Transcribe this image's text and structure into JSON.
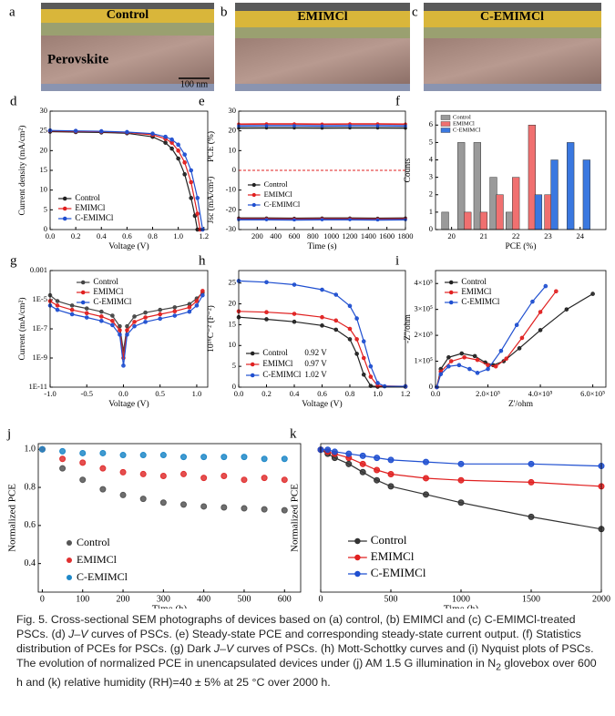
{
  "sem": [
    {
      "label": "a",
      "title": "Control",
      "layer_label": "Perovskite",
      "scale_bar": "100 nm"
    },
    {
      "label": "b",
      "title": "EMIMCl"
    },
    {
      "label": "c",
      "title": "C-EMIMCl"
    }
  ],
  "chart_data": [
    {
      "type": "line",
      "label": "d",
      "xlabel": "Voltage (V)",
      "ylabel": "Current density (mA/cm²)",
      "xlim": [
        0,
        1.23
      ],
      "xticks": [
        {
          "value": 0,
          "label": "0.0"
        },
        0.2,
        0.4,
        0.6,
        0.8,
        {
          "value": 1,
          "label": "1.0"
        },
        1.2
      ],
      "ylim": [
        0,
        30
      ],
      "yticks": [
        0,
        5,
        10,
        15,
        20,
        25,
        30
      ],
      "series": [
        {
          "name": "Control",
          "color": "#222222",
          "x": [
            0,
            0.2,
            0.4,
            0.6,
            0.8,
            0.9,
            0.95,
            1.0,
            1.05,
            1.1,
            1.13,
            1.15
          ],
          "values": [
            24.8,
            24.7,
            24.6,
            24.4,
            23.5,
            22,
            20.5,
            18,
            14,
            8,
            3.5,
            0
          ]
        },
        {
          "name": "EMIMCl",
          "color": "#e02020",
          "x": [
            0,
            0.2,
            0.4,
            0.6,
            0.8,
            0.9,
            0.95,
            1.0,
            1.05,
            1.1,
            1.15,
            1.17
          ],
          "values": [
            25,
            24.9,
            24.8,
            24.6,
            24,
            23,
            22,
            20,
            17,
            12,
            4,
            0
          ]
        },
        {
          "name": "C-EMIMCl",
          "color": "#1f4fd0",
          "x": [
            0,
            0.2,
            0.4,
            0.6,
            0.8,
            0.9,
            0.95,
            1.0,
            1.05,
            1.1,
            1.15,
            1.19
          ],
          "values": [
            25.1,
            25,
            24.9,
            24.7,
            24.3,
            23.5,
            22.8,
            21.5,
            19,
            15,
            8,
            0
          ]
        }
      ]
    },
    {
      "type": "steady",
      "label": "e",
      "xlabel": "Time (s)",
      "ylabel_top": "PCE (%)",
      "ylabel_bottom": "Jsc (mA/cm²)",
      "xlim": [
        0,
        1800
      ],
      "xticks": [
        200,
        400,
        600,
        800,
        1000,
        1200,
        1400,
        1600,
        1800
      ],
      "ylim": [
        -30,
        30
      ],
      "yticks": [
        30,
        20,
        10,
        0,
        -10,
        -20,
        -30
      ],
      "reference_line": 0,
      "x": [
        0,
        300,
        600,
        900,
        1200,
        1500,
        1800
      ],
      "series": [
        {
          "name": "Control",
          "color": "#222222",
          "pce": [
            21.4,
            21.5,
            21.5,
            21.4,
            21.5,
            21.5,
            21.4
          ],
          "jsc": [
            -24.2,
            -24.2,
            -24.3,
            -24.2,
            -24.2,
            -24.3,
            -24.2
          ]
        },
        {
          "name": "EMIMCl",
          "color": "#e02020",
          "pce": [
            23.4,
            23.5,
            23.5,
            23.4,
            23.5,
            23.5,
            23.4
          ],
          "jsc": [
            -24.6,
            -24.6,
            -24.7,
            -24.6,
            -24.6,
            -24.7,
            -24.6
          ]
        },
        {
          "name": "C-EMIMCl",
          "color": "#1f4fd0",
          "pce": [
            22.5,
            22.6,
            22.6,
            22.5,
            22.6,
            22.6,
            22.5
          ],
          "jsc": [
            -25,
            -25,
            -25.1,
            -25,
            -25,
            -25.1,
            -25
          ]
        }
      ]
    },
    {
      "type": "bar",
      "label": "f",
      "xlabel": "PCE (%)",
      "ylabel": "Counts",
      "xlim": [
        19.5,
        24.8
      ],
      "xticks": [
        20,
        21,
        22,
        23,
        24
      ],
      "ylim": [
        0,
        6.8
      ],
      "yticks": [
        0,
        1,
        2,
        3,
        4,
        5,
        6
      ],
      "series": [
        {
          "name": "Control",
          "color": "#9a9a9a",
          "x": [
            19.8,
            20.3,
            20.8,
            21.3,
            21.8
          ],
          "values": [
            1,
            5,
            5,
            3,
            1
          ]
        },
        {
          "name": "EMIMCl",
          "color": "#f07070",
          "x": [
            20.5,
            21.0,
            21.5,
            22.0,
            22.5,
            23.0
          ],
          "values": [
            1,
            1,
            2,
            3,
            6,
            2
          ]
        },
        {
          "name": "C-EMIMCl",
          "color": "#3a78e0",
          "x": [
            22.7,
            23.2,
            23.7,
            24.2
          ],
          "values": [
            2,
            4,
            5,
            4
          ]
        }
      ]
    },
    {
      "type": "line",
      "label": "g",
      "xlabel": "Voltage (V)",
      "ylabel": "Current (mA/cm²)",
      "ylog": true,
      "xlim": [
        -1,
        1.15
      ],
      "xticks": [
        {
          "value": -1,
          "label": "-1.0"
        },
        -0.5,
        {
          "value": 0,
          "label": "0.0"
        },
        0.5,
        {
          "value": 1,
          "label": "1.0"
        }
      ],
      "ylim": [
        1e-11,
        0.001
      ],
      "yticks": [
        {
          "value": 0.001,
          "label": "0.001"
        },
        {
          "value": 1e-05,
          "label": "1E-5"
        },
        {
          "value": 1e-07,
          "label": "1E-7"
        },
        {
          "value": 1e-09,
          "label": "1E-9"
        },
        {
          "value": 1e-11,
          "label": "1E-11"
        }
      ],
      "series": [
        {
          "name": "Control",
          "color": "#444444",
          "x": [
            -1,
            -0.9,
            -0.7,
            -0.5,
            -0.3,
            -0.15,
            -0.05,
            0,
            0.05,
            0.15,
            0.3,
            0.5,
            0.7,
            0.9,
            1.0,
            1.08
          ],
          "values": [
            2e-05,
            8e-06,
            4e-06,
            2.5e-06,
            1.5e-06,
            8e-07,
            1.5e-07,
            3e-09,
            1.5e-07,
            7e-07,
            1.3e-06,
            2e-06,
            3e-06,
            5e-06,
            1.2e-05,
            3e-05
          ]
        },
        {
          "name": "EMIMCl",
          "color": "#e02020",
          "x": [
            -1,
            -0.9,
            -0.7,
            -0.5,
            -0.3,
            -0.15,
            -0.05,
            0,
            0.05,
            0.15,
            0.3,
            0.5,
            0.7,
            0.9,
            1.0,
            1.08
          ],
          "values": [
            8e-06,
            4e-06,
            2e-06,
            1.2e-06,
            7e-07,
            3.5e-07,
            8e-08,
            1e-09,
            8e-08,
            3e-07,
            6e-07,
            1e-06,
            1.6e-06,
            3e-06,
            8e-06,
            4e-05
          ]
        },
        {
          "name": "C-EMIMCl",
          "color": "#1f4fd0",
          "x": [
            -1,
            -0.9,
            -0.7,
            -0.5,
            -0.3,
            -0.15,
            -0.05,
            0,
            0.05,
            0.15,
            0.3,
            0.5,
            0.7,
            0.9,
            1.0,
            1.08
          ],
          "values": [
            4e-06,
            2e-06,
            1e-06,
            6e-07,
            3.5e-07,
            1.8e-07,
            4e-08,
            3e-10,
            4e-08,
            1.5e-07,
            3e-07,
            5e-07,
            8e-07,
            1.5e-06,
            4e-06,
            2e-05
          ]
        }
      ]
    },
    {
      "type": "line",
      "label": "h",
      "xlabel": "Voltage (V)",
      "ylabel": "10¹⁶C⁻² (F⁻²)",
      "xlim": [
        0,
        1.2
      ],
      "xticks": [
        {
          "value": 0,
          "label": "0.0"
        },
        0.2,
        0.4,
        0.6,
        0.8,
        {
          "value": 1,
          "label": "1.0"
        },
        1.2
      ],
      "ylim": [
        0,
        28
      ],
      "yticks": [
        0,
        5,
        10,
        15,
        20,
        25
      ],
      "series": [
        {
          "name": "Control",
          "vbi": "0.92 V",
          "color": "#222222",
          "x": [
            0,
            0.2,
            0.4,
            0.6,
            0.7,
            0.8,
            0.85,
            0.9,
            0.95,
            1.0,
            1.2
          ],
          "values": [
            16.8,
            16.3,
            15.7,
            14.8,
            13.8,
            11.5,
            8,
            3,
            0.3,
            0.1,
            0.1
          ]
        },
        {
          "name": "EMIMCl",
          "vbi": "0.97 V",
          "color": "#e02020",
          "x": [
            0,
            0.2,
            0.4,
            0.6,
            0.7,
            0.8,
            0.85,
            0.9,
            0.95,
            1.0,
            1.2
          ],
          "values": [
            18.2,
            18,
            17.6,
            16.8,
            16,
            14,
            11.5,
            7,
            2.5,
            0.3,
            0.2
          ]
        },
        {
          "name": "C-EMIMCl",
          "vbi": "1.02 V",
          "color": "#1f4fd0",
          "x": [
            0,
            0.2,
            0.4,
            0.6,
            0.7,
            0.8,
            0.85,
            0.9,
            0.95,
            1.0,
            1.05,
            1.2
          ],
          "values": [
            25.5,
            25.2,
            24.6,
            23.4,
            22.2,
            19.5,
            16.5,
            11,
            5,
            1,
            0.2,
            0.2
          ]
        }
      ]
    },
    {
      "type": "line",
      "label": "i",
      "xlabel": "Z'/ohm",
      "ylabel": "-Z''/ohm",
      "xlim": [
        0,
        650000
      ],
      "xticks": [
        {
          "value": 0,
          "label": "0.0"
        },
        {
          "value": 200000,
          "label": "2.0×10⁵"
        },
        {
          "value": 400000,
          "label": "4.0×10⁵"
        },
        {
          "value": 600000,
          "label": "6.0×10⁵"
        }
      ],
      "ylim": [
        0,
        450000
      ],
      "yticks": [
        0,
        {
          "value": 100000,
          "label": "1×10⁵"
        },
        {
          "value": 200000,
          "label": "2×10⁵"
        },
        {
          "value": 300000,
          "label": "3×10⁵"
        },
        {
          "value": 400000,
          "label": "4×10⁵"
        }
      ],
      "series": [
        {
          "name": "Control",
          "color": "#222222",
          "x": [
            5000,
            20000,
            50000,
            100000,
            150000,
            190000,
            220000,
            260000,
            320000,
            400000,
            500000,
            600000
          ],
          "values": [
            0,
            70000,
            115000,
            130000,
            120000,
            95000,
            85000,
            100000,
            150000,
            220000,
            300000,
            360000
          ]
        },
        {
          "name": "EMIMCl",
          "color": "#e02020",
          "x": [
            5000,
            20000,
            60000,
            110000,
            160000,
            200000,
            230000,
            270000,
            330000,
            400000,
            460000
          ],
          "values": [
            0,
            60000,
            100000,
            115000,
            105000,
            85000,
            80000,
            110000,
            190000,
            290000,
            370000
          ]
        },
        {
          "name": "C-EMIMCl",
          "color": "#1f4fd0",
          "x": [
            5000,
            20000,
            50000,
            90000,
            130000,
            160000,
            200000,
            250000,
            310000,
            370000,
            420000
          ],
          "values": [
            0,
            50000,
            80000,
            85000,
            70000,
            55000,
            70000,
            140000,
            240000,
            330000,
            390000
          ]
        }
      ]
    },
    {
      "type": "scatter",
      "label": "j",
      "xlabel": "Time (h)",
      "ylabel": "Normalized PCE",
      "xlim": [
        -10,
        640
      ],
      "xticks": [
        0,
        100,
        200,
        300,
        400,
        500,
        600
      ],
      "ylim": [
        0.25,
        1.03
      ],
      "yticks": [
        0.4,
        0.6,
        0.8,
        {
          "value": 1,
          "label": "1.0"
        }
      ],
      "series": [
        {
          "name": "Control",
          "color": "#555555",
          "x": [
            0,
            50,
            100,
            150,
            200,
            250,
            300,
            350,
            400,
            450,
            500,
            550,
            600
          ],
          "values": [
            1,
            0.9,
            0.84,
            0.79,
            0.76,
            0.74,
            0.72,
            0.71,
            0.7,
            0.695,
            0.69,
            0.685,
            0.68
          ]
        },
        {
          "name": "EMIMCl",
          "color": "#e03030",
          "x": [
            0,
            50,
            100,
            150,
            200,
            250,
            300,
            350,
            400,
            450,
            500,
            550,
            600
          ],
          "values": [
            1,
            0.95,
            0.93,
            0.9,
            0.88,
            0.87,
            0.86,
            0.87,
            0.85,
            0.86,
            0.84,
            0.85,
            0.84
          ]
        },
        {
          "name": "C-EMIMCl",
          "color": "#1e88c8",
          "x": [
            0,
            50,
            100,
            150,
            200,
            250,
            300,
            350,
            400,
            450,
            500,
            550,
            600
          ],
          "values": [
            1,
            0.99,
            0.98,
            0.98,
            0.97,
            0.97,
            0.97,
            0.96,
            0.96,
            0.96,
            0.96,
            0.95,
            0.95
          ]
        }
      ]
    },
    {
      "type": "line",
      "label": "k",
      "xlabel": "Time (h)",
      "ylabel": "Normalized PCE",
      "xlim": [
        0,
        2000
      ],
      "xticks": [
        0,
        500,
        1000,
        1500,
        2000
      ],
      "ylim": [
        0.3,
        1.03
      ],
      "series": [
        {
          "name": "Control",
          "color": "#333333",
          "x": [
            0,
            50,
            100,
            200,
            300,
            400,
            500,
            750,
            1000,
            1500,
            2000
          ],
          "values": [
            1,
            0.98,
            0.96,
            0.93,
            0.89,
            0.85,
            0.82,
            0.78,
            0.74,
            0.67,
            0.61
          ]
        },
        {
          "name": "EMIMCl",
          "color": "#e02020",
          "x": [
            0,
            50,
            100,
            200,
            300,
            400,
            500,
            750,
            1000,
            1500,
            2000
          ],
          "values": [
            1,
            0.99,
            0.98,
            0.96,
            0.93,
            0.9,
            0.88,
            0.86,
            0.85,
            0.84,
            0.82
          ]
        },
        {
          "name": "C-EMIMCl",
          "color": "#1f4fd0",
          "x": [
            0,
            50,
            100,
            200,
            300,
            400,
            500,
            750,
            1000,
            1500,
            2000
          ],
          "values": [
            1,
            1,
            0.99,
            0.98,
            0.97,
            0.96,
            0.95,
            0.94,
            0.93,
            0.93,
            0.92
          ]
        }
      ]
    }
  ],
  "caption": [
    "Fig. 5. Cross-sectional SEM photographs of devices based on (a) control, (b) EMIMCl and (c) C-EMIMCl-treated PSCs. (d) ",
    "J–V",
    " curves of PSCs. (e) Steady-state PCE and corresponding steady-state current output. (f) Statistics distribution of PCEs for PSCs. (g) Dark ",
    "J–V",
    " curves of PSCs. (h) Mott-Schottky curves and (i) Nyquist plots of PSCs. The evolution of normalized PCE in unencapsulated devices under (j) AM 1.5 G illumination in N",
    "2",
    " glovebox over 600 h and (k) relative humidity (RH)=40 ± 5% at 25 °C over 2000 h."
  ]
}
